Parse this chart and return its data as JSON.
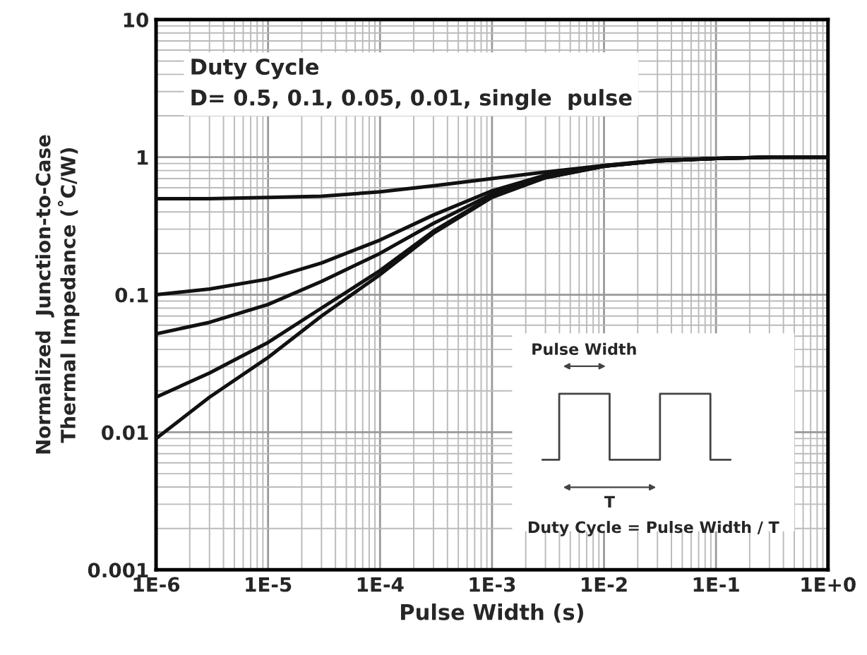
{
  "chart_data": {
    "type": "line",
    "xlabel": "Pulse Width (s)",
    "ylabel": "Normalized  Junction-to-Case\nThermal Impedance (˚C/W)",
    "log": "xy",
    "grid": true,
    "marker": "none",
    "line_style": "solid",
    "xlim": [
      1e-06,
      1
    ],
    "ylim": [
      0.001,
      10
    ],
    "xticks": [
      {
        "value": 1e-06,
        "label": "1E-6"
      },
      {
        "value": 1e-05,
        "label": "1E-5"
      },
      {
        "value": 0.0001,
        "label": "1E-4"
      },
      {
        "value": 0.001,
        "label": "1E-3"
      },
      {
        "value": 0.01,
        "label": "1E-2"
      },
      {
        "value": 0.1,
        "label": "1E-1"
      },
      {
        "value": 1,
        "label": "1E+0"
      }
    ],
    "yticks": [
      0.001,
      0.01,
      0.1,
      1,
      10
    ],
    "x": [
      1e-06,
      3e-06,
      1e-05,
      3e-05,
      0.0001,
      0.0003,
      0.001,
      0.003,
      0.01,
      0.03,
      0.1,
      0.3,
      1
    ],
    "series": [
      {
        "color": "#111111",
        "values": [
          0.5,
          0.5,
          0.51,
          0.52,
          0.56,
          0.62,
          0.7,
          0.78,
          0.87,
          0.94,
          0.98,
          1.0,
          1.0
        ]
      },
      {
        "color": "#111111",
        "values": [
          0.1,
          0.11,
          0.13,
          0.17,
          0.25,
          0.38,
          0.57,
          0.74,
          0.87,
          0.95,
          0.98,
          1.0,
          1.0
        ]
      },
      {
        "color": "#111111",
        "values": [
          0.052,
          0.063,
          0.085,
          0.125,
          0.2,
          0.33,
          0.54,
          0.72,
          0.86,
          0.94,
          0.98,
          1.0,
          1.0
        ]
      },
      {
        "color": "#111111",
        "values": [
          0.018,
          0.027,
          0.045,
          0.08,
          0.15,
          0.29,
          0.52,
          0.71,
          0.86,
          0.94,
          0.98,
          1.0,
          1.0
        ]
      },
      {
        "color": "#111111",
        "values": [
          0.009,
          0.018,
          0.035,
          0.07,
          0.14,
          0.28,
          0.51,
          0.71,
          0.86,
          0.94,
          0.98,
          1.0,
          1.0
        ]
      }
    ],
    "annotations": [
      "Duty Cycle\nD= 0.5, 0.1, 0.05, 0.01, single  pulse",
      "Pulse Width",
      "T",
      "Duty Cycle = Pulse Width / T"
    ]
  }
}
